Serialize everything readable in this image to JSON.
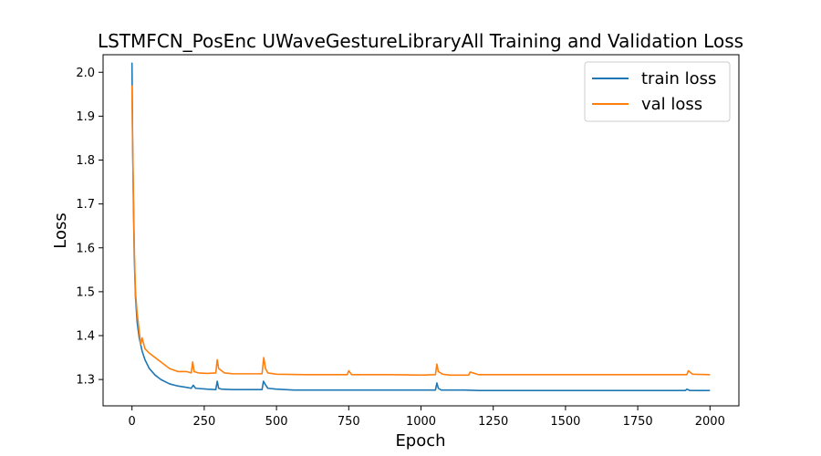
{
  "chart_data": {
    "type": "line",
    "title": "LSTMFCN_PosEnc UWaveGestureLibraryAll Training and Validation Loss",
    "xlabel": "Epoch",
    "ylabel": "Loss",
    "xlim": [
      -100,
      2100
    ],
    "ylim": [
      1.24,
      2.04
    ],
    "xticks": [
      0,
      250,
      500,
      750,
      1000,
      1250,
      1500,
      1750,
      2000
    ],
    "yticks": [
      1.3,
      1.4,
      1.5,
      1.6,
      1.7,
      1.8,
      1.9,
      2.0
    ],
    "grid": false,
    "legend": "top-right",
    "series": [
      {
        "name": "train loss",
        "color": "#1f77b4",
        "x": [
          0,
          2,
          5,
          8,
          12,
          18,
          25,
          35,
          45,
          60,
          80,
          100,
          130,
          160,
          190,
          205,
          212,
          220,
          260,
          290,
          295,
          300,
          310,
          350,
          400,
          450,
          455,
          460,
          470,
          500,
          560,
          600,
          700,
          800,
          900,
          1000,
          1050,
          1055,
          1060,
          1070,
          1150,
          1200,
          1400,
          1600,
          1800,
          1915,
          1920,
          1930,
          2000
        ],
        "y": [
          2.022,
          1.85,
          1.7,
          1.58,
          1.49,
          1.43,
          1.395,
          1.365,
          1.345,
          1.325,
          1.31,
          1.3,
          1.29,
          1.285,
          1.282,
          1.28,
          1.287,
          1.28,
          1.278,
          1.277,
          1.296,
          1.28,
          1.278,
          1.277,
          1.277,
          1.277,
          1.296,
          1.29,
          1.28,
          1.278,
          1.276,
          1.276,
          1.276,
          1.276,
          1.276,
          1.276,
          1.276,
          1.292,
          1.28,
          1.276,
          1.276,
          1.275,
          1.275,
          1.275,
          1.275,
          1.275,
          1.278,
          1.275,
          1.275
        ]
      },
      {
        "name": "val loss",
        "color": "#ff7f0e",
        "x": [
          0,
          2,
          5,
          8,
          12,
          18,
          25,
          30,
          35,
          45,
          60,
          80,
          100,
          130,
          160,
          190,
          205,
          210,
          215,
          230,
          260,
          290,
          295,
          300,
          320,
          350,
          400,
          450,
          456,
          462,
          470,
          500,
          600,
          700,
          745,
          750,
          760,
          800,
          900,
          1000,
          1050,
          1055,
          1060,
          1075,
          1100,
          1165,
          1170,
          1200,
          1400,
          1600,
          1800,
          1920,
          1925,
          1940,
          2000
        ],
        "y": [
          1.97,
          1.85,
          1.72,
          1.6,
          1.5,
          1.45,
          1.41,
          1.38,
          1.395,
          1.37,
          1.36,
          1.35,
          1.34,
          1.325,
          1.318,
          1.318,
          1.315,
          1.34,
          1.318,
          1.315,
          1.314,
          1.315,
          1.345,
          1.325,
          1.315,
          1.313,
          1.313,
          1.313,
          1.35,
          1.325,
          1.315,
          1.312,
          1.311,
          1.311,
          1.311,
          1.32,
          1.311,
          1.311,
          1.311,
          1.31,
          1.311,
          1.335,
          1.318,
          1.312,
          1.31,
          1.31,
          1.317,
          1.311,
          1.311,
          1.311,
          1.311,
          1.311,
          1.32,
          1.312,
          1.311
        ]
      }
    ]
  }
}
